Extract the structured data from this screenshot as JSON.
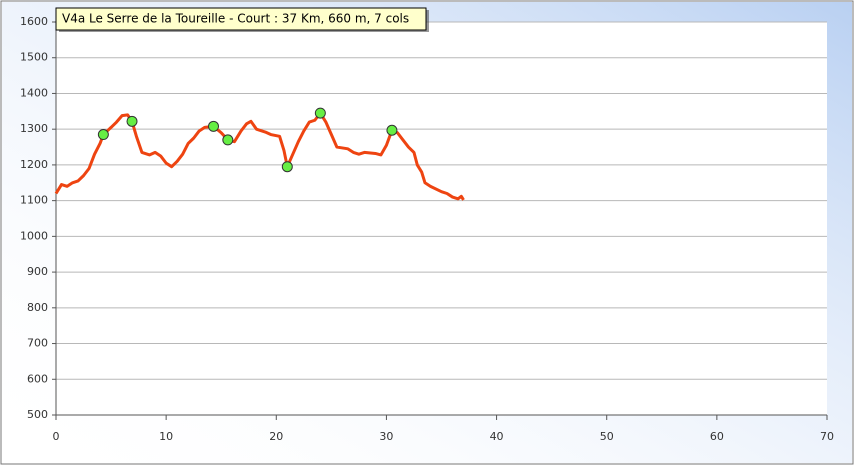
{
  "chart_data": {
    "type": "line",
    "title": "V4a Le Serre de la Toureille - Court : 37 Km, 660 m, 7 cols",
    "x": [
      0,
      0.5,
      1,
      1.5,
      2,
      2.5,
      3,
      3.5,
      4,
      4.3,
      5,
      5.5,
      6,
      6.5,
      6.9,
      7.3,
      7.8,
      8.5,
      9,
      9.5,
      10,
      10.5,
      11,
      11.5,
      12,
      12.5,
      13,
      13.5,
      14.3,
      15,
      15.6,
      16.2,
      16.8,
      17.3,
      17.7,
      18.2,
      19,
      19.5,
      20.3,
      20.7,
      21,
      21.5,
      22,
      22.5,
      23,
      23.5,
      24,
      24.5,
      25,
      25.5,
      26.5,
      27,
      27.5,
      28,
      29,
      29.5,
      30,
      30.5,
      31,
      31.5,
      32,
      32.5,
      32.8,
      33.2,
      33.5,
      34,
      35,
      35.5,
      36,
      36.5,
      36.8,
      37
    ],
    "values": [
      1120,
      1145,
      1140,
      1150,
      1155,
      1170,
      1190,
      1230,
      1260,
      1285,
      1305,
      1320,
      1338,
      1340,
      1322,
      1280,
      1235,
      1228,
      1235,
      1225,
      1205,
      1195,
      1210,
      1230,
      1260,
      1275,
      1295,
      1305,
      1308,
      1290,
      1270,
      1265,
      1295,
      1315,
      1322,
      1300,
      1292,
      1285,
      1280,
      1240,
      1195,
      1230,
      1265,
      1295,
      1320,
      1325,
      1345,
      1320,
      1285,
      1250,
      1245,
      1235,
      1230,
      1235,
      1232,
      1228,
      1255,
      1297,
      1290,
      1270,
      1250,
      1235,
      1200,
      1180,
      1150,
      1140,
      1125,
      1120,
      1110,
      1105,
      1112,
      1102
    ],
    "color": "#ee4411",
    "markers": {
      "x": [
        4.3,
        6.9,
        14.3,
        15.6,
        21,
        24,
        30.5
      ],
      "values": [
        1285,
        1322,
        1308,
        1270,
        1195,
        1345,
        1297
      ],
      "color": "#66ee44"
    },
    "xlim": [
      0,
      70
    ],
    "xticks": [
      0,
      10,
      20,
      30,
      40,
      50,
      60,
      70
    ],
    "ylim": [
      500,
      1600
    ],
    "yticks": [
      500,
      600,
      700,
      800,
      900,
      1000,
      1100,
      1200,
      1300,
      1400,
      1500,
      1600
    ],
    "grid": true
  }
}
